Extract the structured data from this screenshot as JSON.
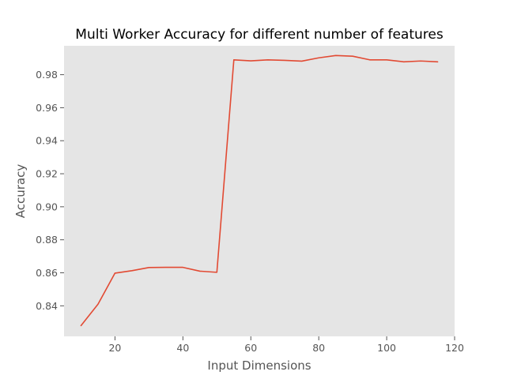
{
  "colors": {
    "series": "#e24a33",
    "plot_background": "#e5e5e5",
    "text": "#555555"
  },
  "chart_data": {
    "type": "line",
    "title": "Multi Worker Accuracy for different number of features",
    "xlabel": "Input Dimensions",
    "ylabel": "Accuracy",
    "xlim": [
      5,
      120
    ],
    "ylim": [
      0.8215,
      0.9975
    ],
    "xticks": [
      20,
      40,
      60,
      80,
      100,
      120
    ],
    "yticks": [
      0.84,
      0.86,
      0.88,
      0.9,
      0.92,
      0.94,
      0.96,
      0.98
    ],
    "xtick_labels": [
      "20",
      "40",
      "60",
      "80",
      "100",
      "120"
    ],
    "ytick_labels": [
      "0.84",
      "0.86",
      "0.88",
      "0.90",
      "0.92",
      "0.94",
      "0.96",
      "0.98"
    ],
    "grid": false,
    "legend": "none",
    "series": [
      {
        "x": [
          10,
          15,
          20,
          25,
          30,
          35,
          40,
          45,
          50,
          55,
          60,
          65,
          70,
          75,
          80,
          85,
          90,
          95,
          100,
          105,
          110,
          115
        ],
        "y": [
          0.828,
          0.841,
          0.8598,
          0.8613,
          0.8632,
          0.8633,
          0.8633,
          0.861,
          0.8603,
          0.989,
          0.9884,
          0.989,
          0.9887,
          0.9882,
          0.9902,
          0.9916,
          0.9912,
          0.989,
          0.989,
          0.9878,
          0.9883,
          0.9878
        ]
      }
    ]
  }
}
